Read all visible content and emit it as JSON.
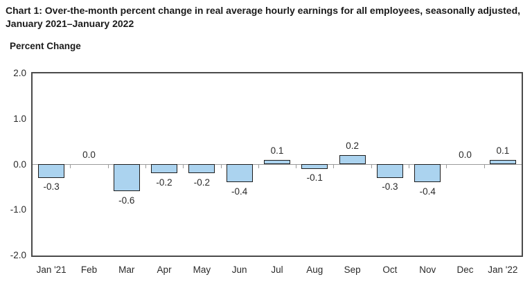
{
  "title": "Chart 1: Over-the-month percent change in real average hourly earnings for all employees, seasonally adjusted, January 2021–January 2022",
  "chart_data": {
    "type": "bar",
    "title": "Chart 1: Over-the-month percent change in real average hourly earnings for all employees, seasonally adjusted, January 2021–January 2022",
    "xlabel": "",
    "ylabel": "Percent Change",
    "categories": [
      "Jan '21",
      "Feb",
      "Mar",
      "Apr",
      "May",
      "Jun",
      "Jul",
      "Aug",
      "Sep",
      "Oct",
      "Nov",
      "Dec",
      "Jan '22"
    ],
    "values": [
      -0.3,
      0.0,
      -0.6,
      -0.2,
      -0.2,
      -0.4,
      0.1,
      -0.1,
      0.2,
      -0.3,
      -0.4,
      0.0,
      0.1
    ],
    "value_labels": [
      "-0.3",
      "0.0",
      "-0.6",
      "-0.2",
      "-0.2",
      "-0.4",
      "0.1",
      "-0.1",
      "0.2",
      "-0.3",
      "-0.4",
      "0.0",
      "0.1"
    ],
    "ylim": [
      -2.0,
      2.0
    ],
    "yticks": [
      "2.0",
      "1.0",
      "0.0",
      "-1.0",
      "-2.0"
    ],
    "grid": false,
    "legend": false,
    "bar_color": "#abd3ef",
    "bar_border_color": "#1c1c1c",
    "plot_border_color": "#4a4a4a",
    "zero_line_color": "#9b9b9b"
  }
}
